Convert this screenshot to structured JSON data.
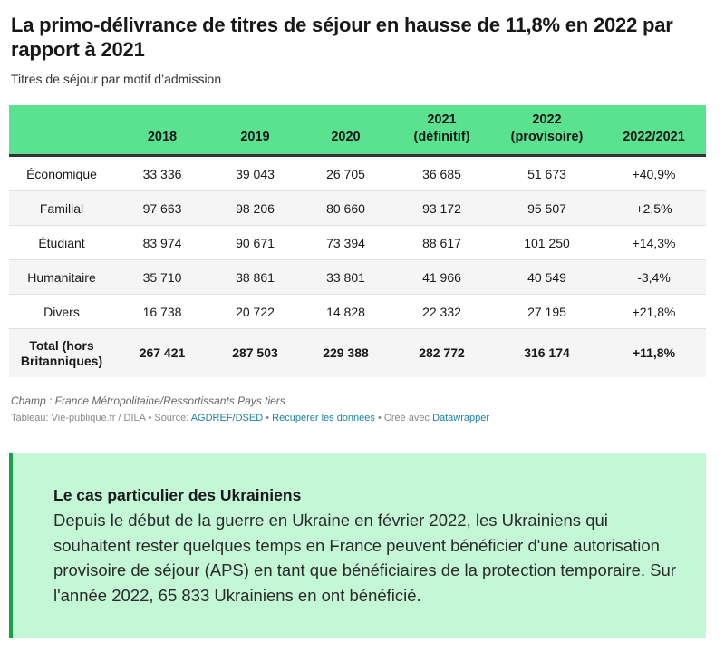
{
  "title": "La primo-délivrance de titres de séjour en hausse de 11,8% en 2022 par rapport à 2021",
  "subtitle": "Titres de séjour par motif d’admission",
  "table": {
    "headers": [
      "",
      "2018",
      "2019",
      "2020",
      "2021\n(définitif)",
      "2022\n(provisoire)",
      "2022/2021"
    ],
    "header_lines": [
      [
        "",
        ""
      ],
      [
        "",
        "2018"
      ],
      [
        "",
        "2019"
      ],
      [
        "",
        "2020"
      ],
      [
        "2021",
        "(définitif)"
      ],
      [
        "2022",
        "(provisoire)"
      ],
      [
        "",
        "2022/2021"
      ]
    ],
    "rows": [
      [
        "Économique",
        "33 336",
        "39 043",
        "26 705",
        "36 685",
        "51 673",
        "+40,9%"
      ],
      [
        "Familial",
        "97 663",
        "98 206",
        "80 660",
        "93 172",
        "95 507",
        "+2,5%"
      ],
      [
        "Étudiant",
        "83 974",
        "90 671",
        "73 394",
        "88 617",
        "101 250",
        "+14,3%"
      ],
      [
        "Humanitaire",
        "35 710",
        "38 861",
        "33 801",
        "41 966",
        "40 549",
        "-3,4%"
      ],
      [
        "Divers",
        "16 738",
        "20 722",
        "14 828",
        "22 332",
        "27 195",
        "+21,8%"
      ]
    ],
    "total": [
      "Total (hors Britanniques)",
      "267 421",
      "287 503",
      "229 388",
      "282 772",
      "316 174",
      "+11,8%"
    ]
  },
  "notes": "Champ : France Métropolitaine/Ressortissants Pays tiers",
  "credits": {
    "prefix": "Tableau: Vie-publique.fr / DILA • Source: ",
    "source": "AGDREF/DSED",
    "sep1": " • ",
    "get_data": "Récupérer les données",
    "sep2": " • Créé avec ",
    "tool": "Datawrapper"
  },
  "box": {
    "heading": "Le cas particulier des Ukrainiens",
    "text": "Depuis le début de la guerre en Ukraine en février 2022, les Ukrainiens qui souhaitent rester quelques temps en France peuvent bénéficier d'une autorisation provisoire de séjour (APS) en tant que bénéficiaires de la protection temporaire. Sur l'année 2022, 65 833 Ukrainiens en ont bénéficié."
  },
  "colors": {
    "header": "#5ae290",
    "box_bg": "#c3f7d6",
    "box_border": "#17a24a",
    "link": "#1d81a2"
  }
}
